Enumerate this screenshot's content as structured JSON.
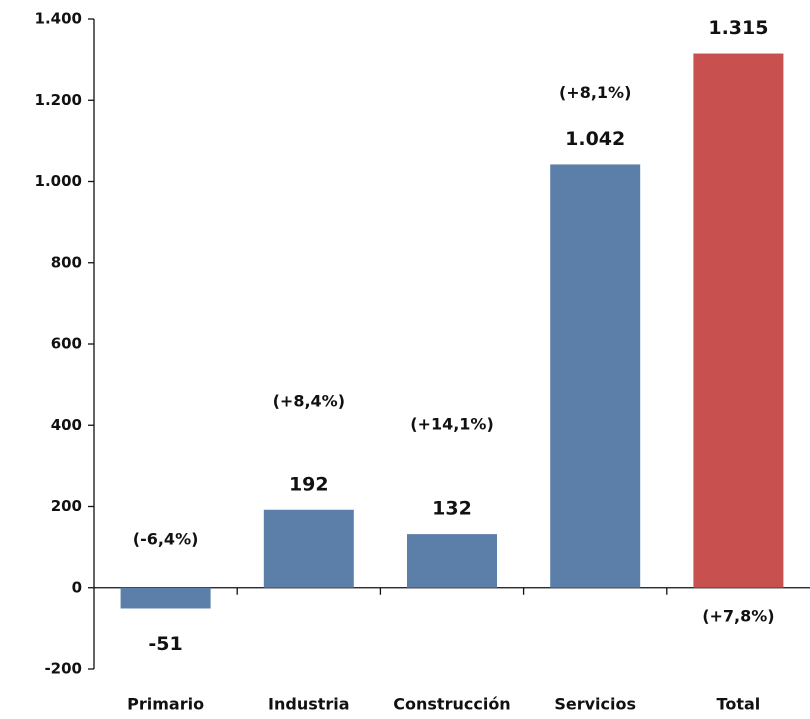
{
  "chart_data": {
    "type": "bar",
    "categories": [
      "Primario",
      "Industria",
      "Construcción",
      "Servicios",
      "Total"
    ],
    "values": [
      -51,
      192,
      132,
      1042,
      1315
    ],
    "value_labels": [
      "-51",
      "192",
      "132",
      "1.042",
      "1.315"
    ],
    "change_labels": [
      "(-6,4%)",
      "(+8,4%)",
      "(+14,1%)",
      "(+8,1%)",
      "(+7,8%)"
    ],
    "colors": [
      "#5b7fa8",
      "#5b7fa8",
      "#5b7fa8",
      "#5b7fa8",
      "#c8504f"
    ],
    "ylim": [
      -200,
      1400
    ],
    "yticks": [
      -200,
      0,
      200,
      400,
      600,
      800,
      {
        "value": 1000,
        "label": "1.000"
      },
      {
        "value": 1200,
        "label": "1.200"
      },
      {
        "value": 1400,
        "label": "1.400"
      }
    ],
    "grid": false
  }
}
